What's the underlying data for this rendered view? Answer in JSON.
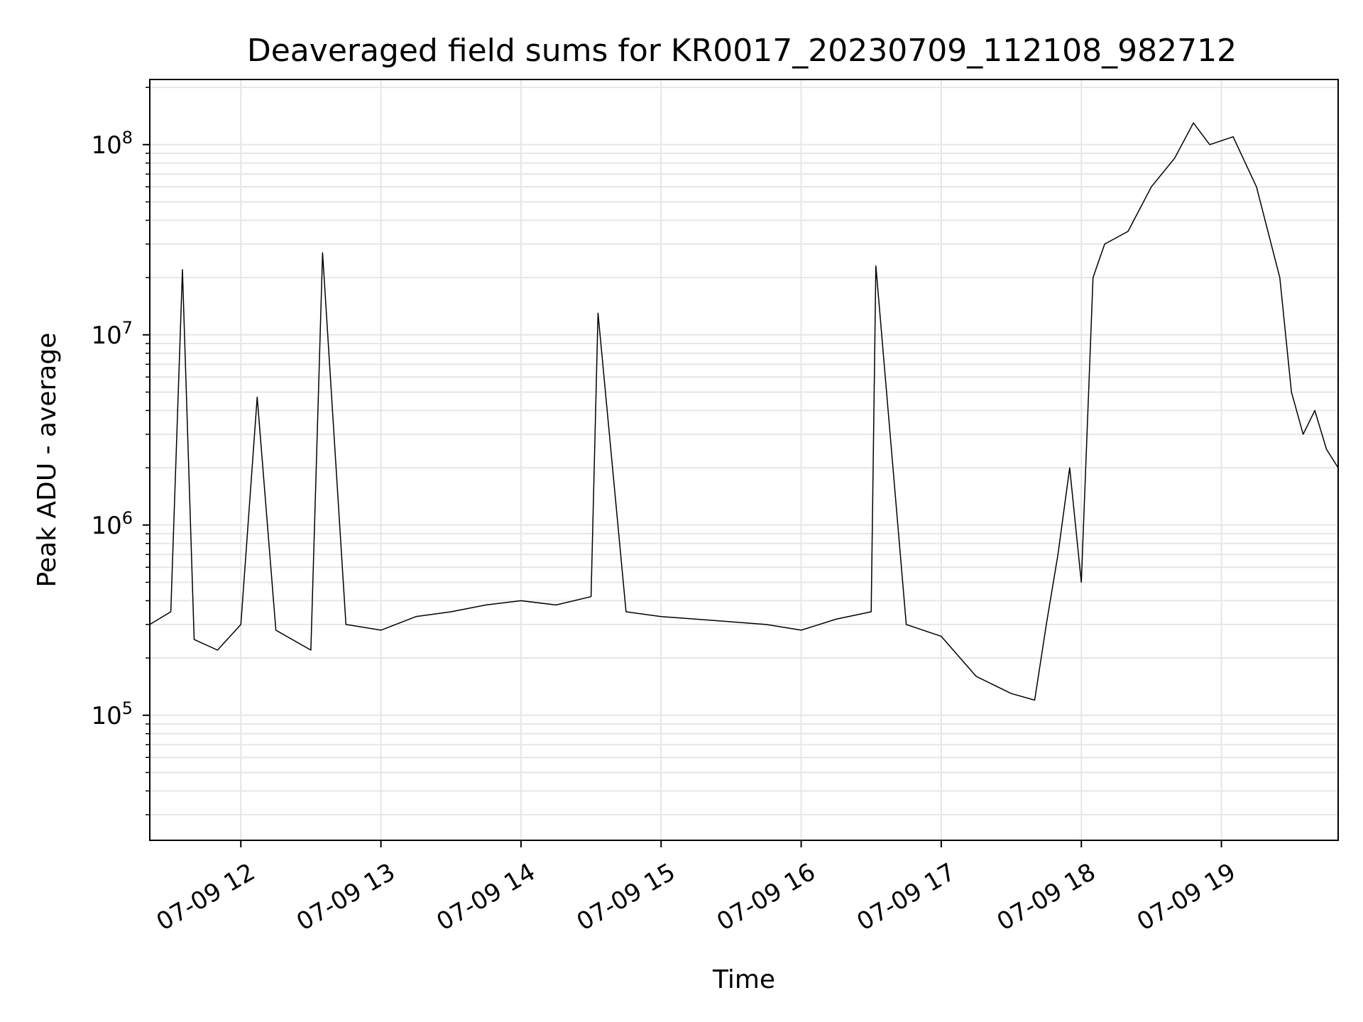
{
  "chart_data": {
    "type": "line",
    "title": "Deaveraged field sums for KR0017_20230709_112108_982712",
    "xlabel": "Time",
    "ylabel": "Peak ADU - average",
    "yscale": "log",
    "ylim": [
      22000,
      220000000
    ],
    "y_ticks": [
      {
        "value": 100000,
        "base": "10",
        "exp": "5"
      },
      {
        "value": 1000000,
        "base": "10",
        "exp": "6"
      },
      {
        "value": 10000000,
        "base": "10",
        "exp": "7"
      },
      {
        "value": 100000000,
        "base": "10",
        "exp": "8"
      }
    ],
    "xlim": [
      "2023-07-09 11:21",
      "2023-07-09 19:50"
    ],
    "x_ticks": [
      {
        "value": "2023-07-09 12:00",
        "label": "07-09 12"
      },
      {
        "value": "2023-07-09 13:00",
        "label": "07-09 13"
      },
      {
        "value": "2023-07-09 14:00",
        "label": "07-09 14"
      },
      {
        "value": "2023-07-09 15:00",
        "label": "07-09 15"
      },
      {
        "value": "2023-07-09 16:00",
        "label": "07-09 16"
      },
      {
        "value": "2023-07-09 17:00",
        "label": "07-09 17"
      },
      {
        "value": "2023-07-09 18:00",
        "label": "07-09 18"
      },
      {
        "value": "2023-07-09 19:00",
        "label": "07-09 19"
      }
    ],
    "grid": true,
    "line_color": "#000000",
    "grid_color": "#e6e6e6",
    "series": [
      {
        "x": [
          "2023-07-09 11:21",
          "2023-07-09 11:30",
          "2023-07-09 11:35",
          "2023-07-09 11:40",
          "2023-07-09 11:50",
          "2023-07-09 12:00",
          "2023-07-09 12:07",
          "2023-07-09 12:15",
          "2023-07-09 12:30",
          "2023-07-09 12:35",
          "2023-07-09 12:45",
          "2023-07-09 13:00",
          "2023-07-09 13:15",
          "2023-07-09 13:30",
          "2023-07-09 13:45",
          "2023-07-09 14:00",
          "2023-07-09 14:15",
          "2023-07-09 14:30",
          "2023-07-09 14:33",
          "2023-07-09 14:45",
          "2023-07-09 15:00",
          "2023-07-09 15:15",
          "2023-07-09 15:30",
          "2023-07-09 15:45",
          "2023-07-09 16:00",
          "2023-07-09 16:15",
          "2023-07-09 16:30",
          "2023-07-09 16:32",
          "2023-07-09 16:45",
          "2023-07-09 17:00",
          "2023-07-09 17:15",
          "2023-07-09 17:30",
          "2023-07-09 17:40",
          "2023-07-09 17:45",
          "2023-07-09 17:50",
          "2023-07-09 17:55",
          "2023-07-09 18:00",
          "2023-07-09 18:05",
          "2023-07-09 18:10",
          "2023-07-09 18:20",
          "2023-07-09 18:30",
          "2023-07-09 18:40",
          "2023-07-09 18:48",
          "2023-07-09 18:55",
          "2023-07-09 19:05",
          "2023-07-09 19:15",
          "2023-07-09 19:25",
          "2023-07-09 19:30",
          "2023-07-09 19:35",
          "2023-07-09 19:40",
          "2023-07-09 19:45",
          "2023-07-09 19:50"
        ],
        "y": [
          300000,
          350000,
          22000000,
          250000,
          220000,
          300000,
          4700000,
          280000,
          220000,
          27000000,
          300000,
          280000,
          330000,
          350000,
          380000,
          400000,
          380000,
          420000,
          13000000,
          350000,
          330000,
          320000,
          310000,
          300000,
          280000,
          320000,
          350000,
          23000000,
          300000,
          260000,
          160000,
          130000,
          120000,
          300000,
          700000,
          2000000,
          500000,
          20000000,
          30000000,
          35000000,
          60000000,
          85000000,
          130000000,
          100000000,
          110000000,
          60000000,
          20000000,
          5000000,
          3000000,
          4000000,
          2500000,
          2000000
        ]
      }
    ]
  }
}
